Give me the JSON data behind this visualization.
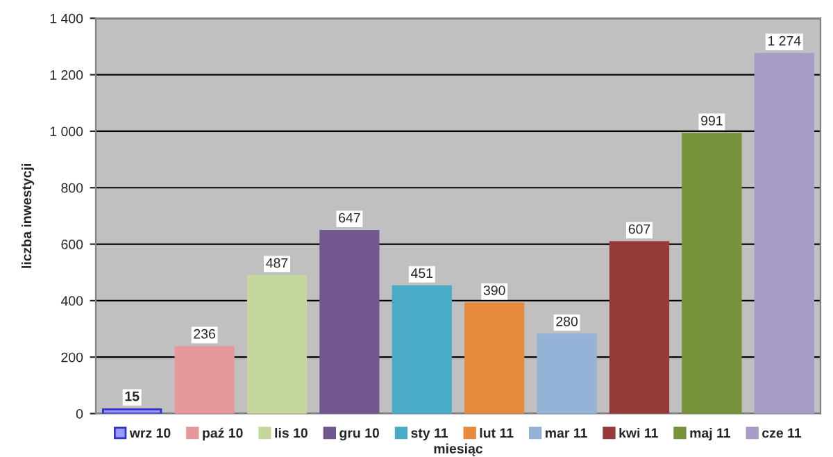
{
  "chart_data": {
    "type": "bar",
    "xlabel": "miesiąc",
    "ylabel": "liczba inwestycji",
    "categories": [
      null,
      null,
      null,
      null,
      null,
      null,
      null,
      null,
      null,
      null
    ],
    "series": [
      {
        "name": "wrz 10",
        "color": "#9999ff",
        "values": [
          15,
          null,
          null,
          null,
          null,
          null,
          null,
          null,
          null,
          null
        ],
        "value_labels": [
          "15",
          null,
          null,
          null,
          null,
          null,
          null,
          null,
          null,
          null
        ]
      },
      {
        "name": "paź 10",
        "color": "#e6999a",
        "values": [
          null,
          236,
          null,
          null,
          null,
          null,
          null,
          null,
          null,
          null
        ],
        "value_labels": [
          null,
          "236",
          null,
          null,
          null,
          null,
          null,
          null,
          null,
          null
        ]
      },
      {
        "name": "lis 10",
        "color": "#c5d89b",
        "values": [
          null,
          null,
          487,
          null,
          null,
          null,
          null,
          null,
          null,
          null
        ],
        "value_labels": [
          null,
          null,
          "487",
          null,
          null,
          null,
          null,
          null,
          null,
          null
        ]
      },
      {
        "name": "gru 10",
        "color": "#72588f",
        "values": [
          null,
          null,
          null,
          647,
          null,
          null,
          null,
          null,
          null,
          null
        ],
        "value_labels": [
          null,
          null,
          null,
          "647",
          null,
          null,
          null,
          null,
          null,
          null
        ]
      },
      {
        "name": "sty 11",
        "color": "#4aacc6",
        "values": [
          null,
          null,
          null,
          null,
          451,
          null,
          null,
          null,
          null,
          null
        ],
        "value_labels": [
          null,
          null,
          null,
          null,
          "451",
          null,
          null,
          null,
          null,
          null
        ]
      },
      {
        "name": "lut 11",
        "color": "#e88a3e",
        "values": [
          null,
          null,
          null,
          null,
          null,
          390,
          null,
          null,
          null,
          null
        ],
        "value_labels": [
          null,
          null,
          null,
          null,
          null,
          "390",
          null,
          null,
          null,
          null
        ]
      },
      {
        "name": "mar 11",
        "color": "#94b3d7",
        "values": [
          null,
          null,
          null,
          null,
          null,
          null,
          280,
          null,
          null,
          null
        ],
        "value_labels": [
          null,
          null,
          null,
          null,
          null,
          null,
          "280",
          null,
          null,
          null
        ]
      },
      {
        "name": "kwi 11",
        "color": "#963b3a",
        "values": [
          null,
          null,
          null,
          null,
          null,
          null,
          null,
          607,
          null,
          null
        ],
        "value_labels": [
          null,
          null,
          null,
          null,
          null,
          null,
          null,
          "607",
          null,
          null
        ]
      },
      {
        "name": "maj 11",
        "color": "#76933c",
        "values": [
          null,
          null,
          null,
          null,
          null,
          null,
          null,
          null,
          991,
          null
        ],
        "value_labels": [
          null,
          null,
          null,
          null,
          null,
          null,
          null,
          null,
          "991",
          null
        ]
      },
      {
        "name": "cze 11",
        "color": "#a89bc5",
        "values": [
          null,
          null,
          null,
          null,
          null,
          null,
          null,
          null,
          null,
          1274
        ],
        "value_labels": [
          null,
          null,
          null,
          null,
          null,
          null,
          null,
          null,
          null,
          "1 274"
        ]
      }
    ],
    "ylim": [
      0,
      1400
    ],
    "yticks": [
      0,
      200,
      400,
      600,
      800,
      {
        "value": 1000,
        "label": "1 000"
      },
      {
        "value": 1200,
        "label": "1 200"
      },
      {
        "value": 1400,
        "label": "1 400"
      }
    ],
    "grid": "y",
    "legend": "bottom",
    "tick_labels": "y"
  }
}
